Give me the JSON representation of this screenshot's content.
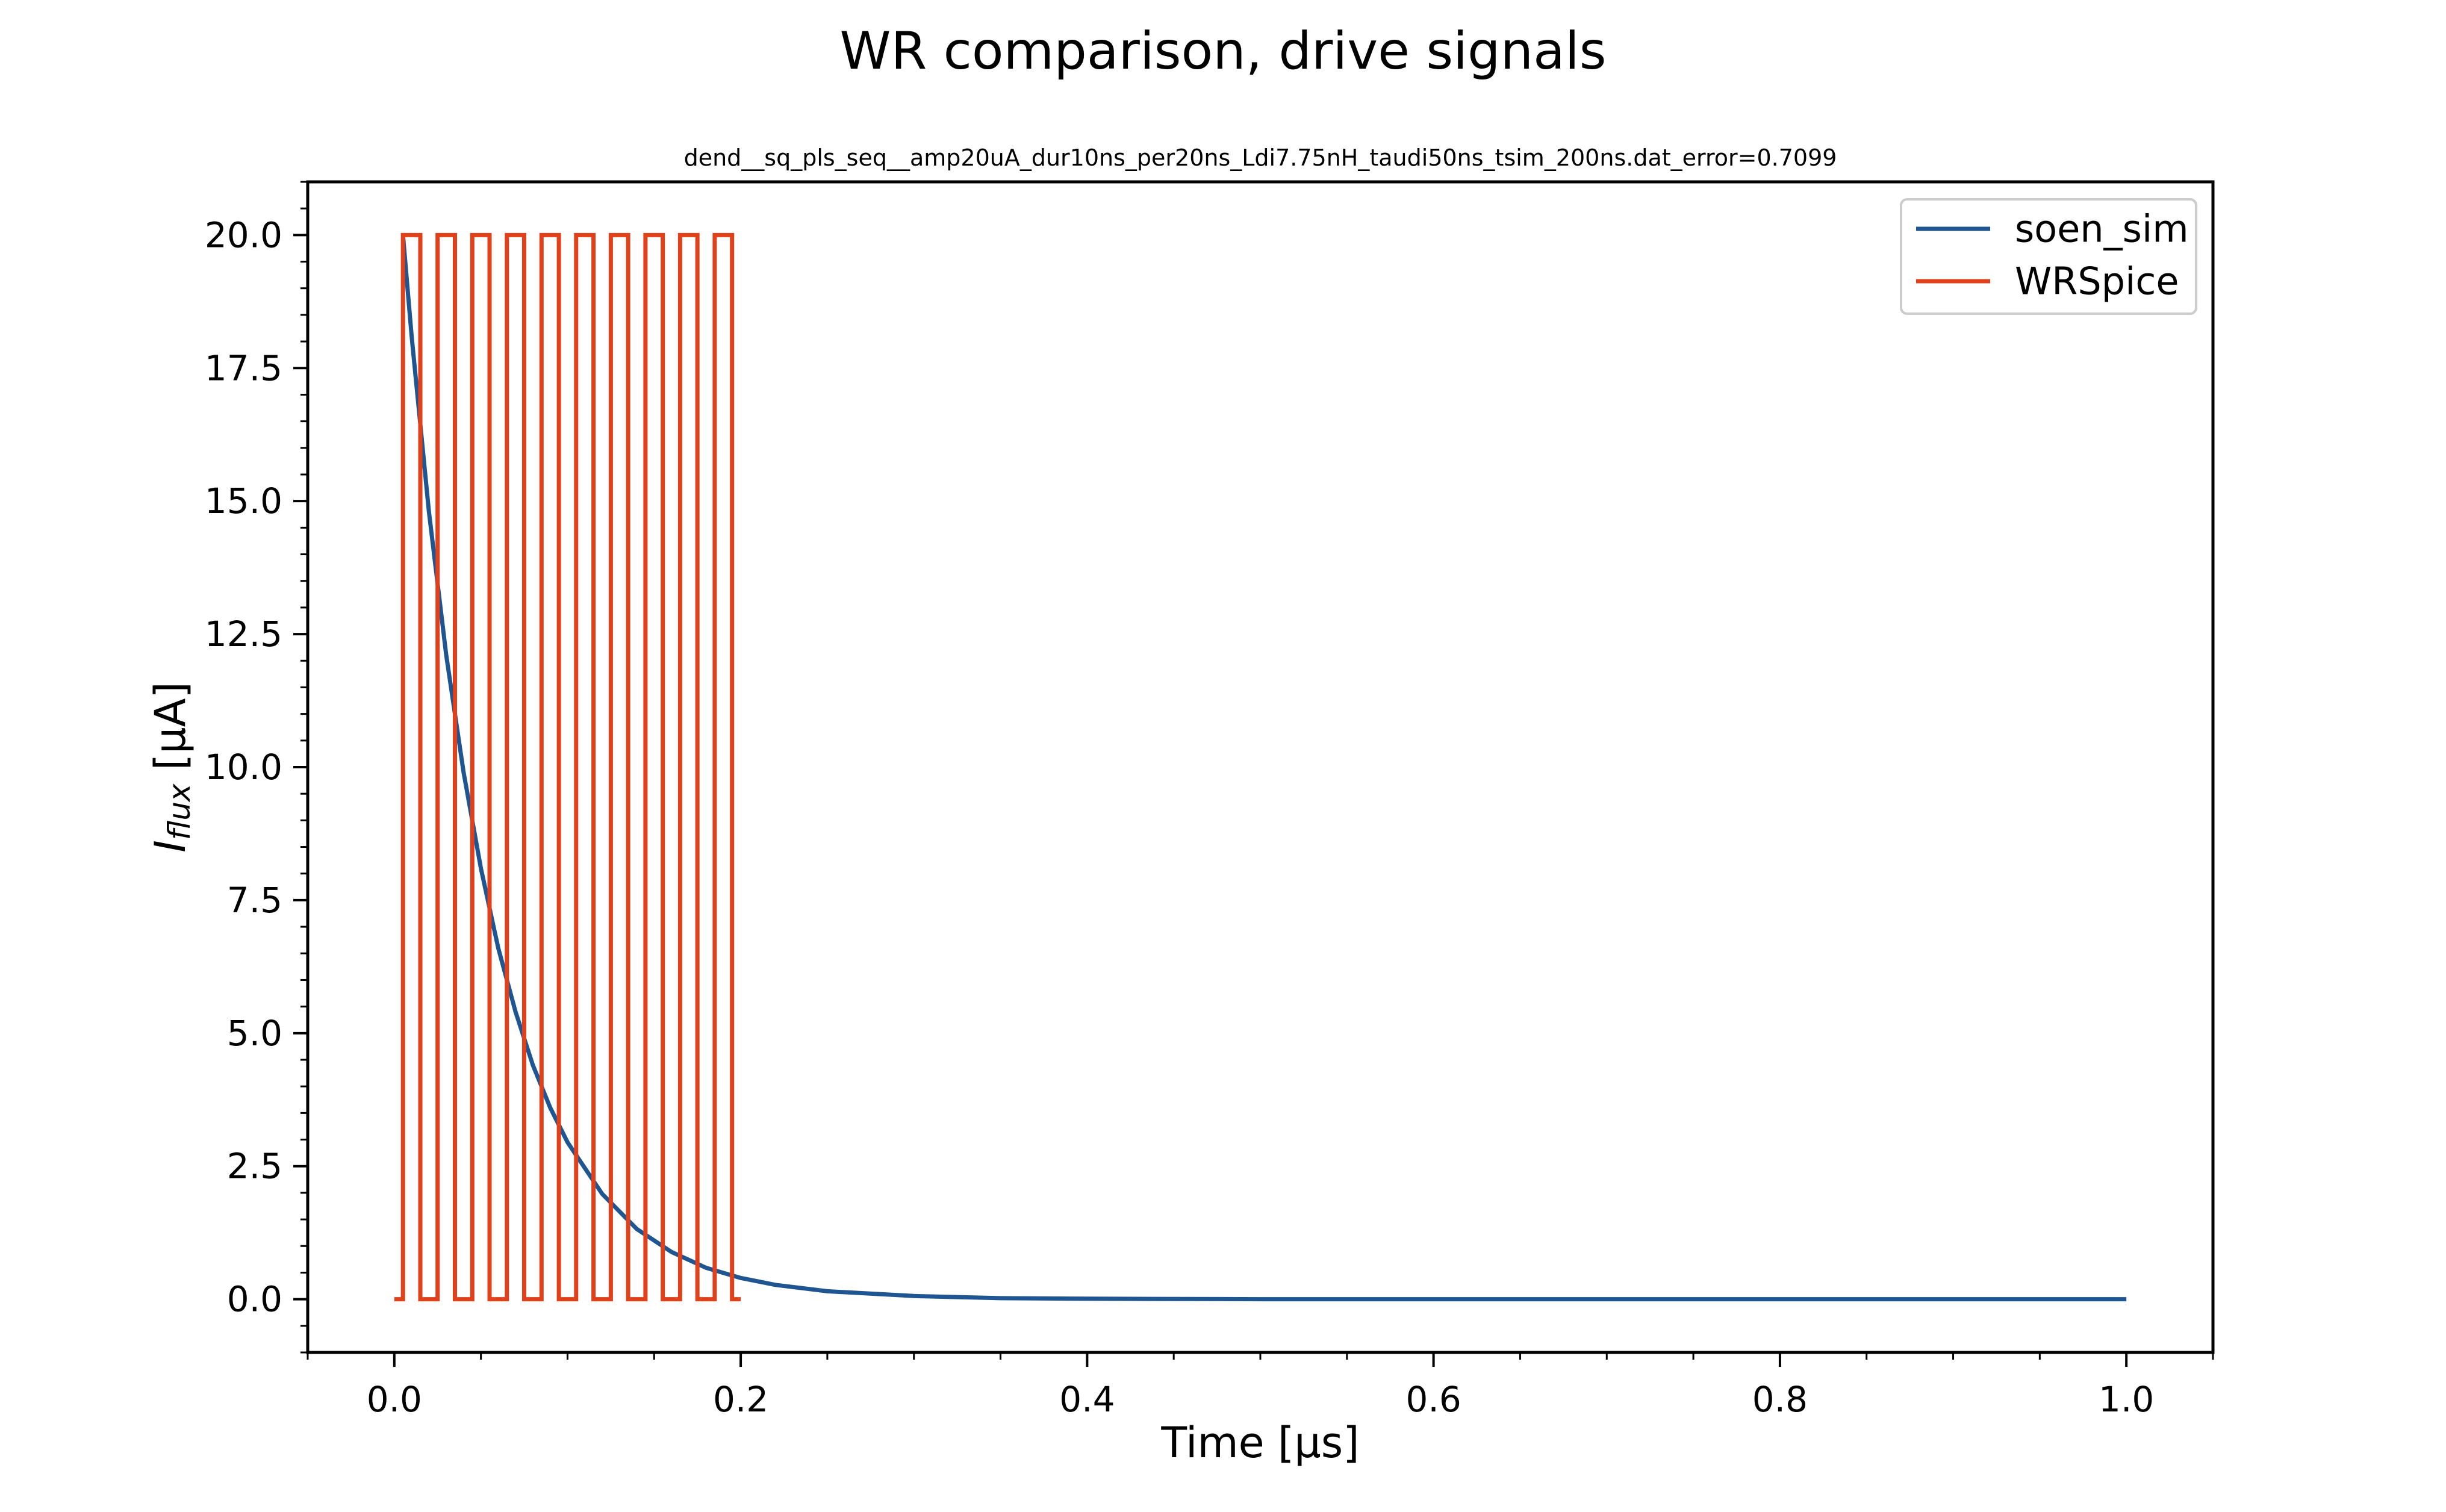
{
  "figure": {
    "suptitle": "WR comparison, drive signals"
  },
  "colors": {
    "soen_sim": "#1f5591",
    "WRSpice": "#e0401a"
  },
  "chart_data": {
    "type": "line",
    "title": "dend__sq_pls_seq__amp20uA_dur10ns_per20ns_Ldi7.75nH_taudi50ns_tsim_200ns.dat_error=0.7099",
    "xlabel": "Time [μs]",
    "ylabel": "I_flux [μA]",
    "ylabel_main": "I",
    "ylabel_sub": "flux",
    "ylabel_rest": " [μA]",
    "xlim": [
      -0.05,
      1.05
    ],
    "ylim": [
      -1.0,
      21.0
    ],
    "xticks": [
      0.0,
      0.2,
      0.4,
      0.6,
      0.8,
      1.0
    ],
    "xtick_labels": [
      "0.0",
      "0.2",
      "0.4",
      "0.6",
      "0.8",
      "1.0"
    ],
    "yticks": [
      0.0,
      2.5,
      5.0,
      7.5,
      10.0,
      12.5,
      15.0,
      17.5,
      20.0
    ],
    "ytick_labels": [
      "0.0",
      "2.5",
      "5.0",
      "7.5",
      "10.0",
      "12.5",
      "15.0",
      "17.5",
      "20.0"
    ],
    "legend": {
      "position": "top-right",
      "entries": [
        "soen_sim",
        "WRSpice"
      ]
    },
    "grid": false,
    "series": [
      {
        "name": "soen_sim",
        "x": [
          0.005,
          0.01,
          0.02,
          0.03,
          0.04,
          0.05,
          0.06,
          0.07,
          0.08,
          0.09,
          0.1,
          0.12,
          0.14,
          0.16,
          0.18,
          0.2,
          0.22,
          0.25,
          0.3,
          0.35,
          0.4,
          0.5,
          0.6,
          0.7,
          0.8,
          0.9,
          1.0
        ],
        "y": [
          20.0,
          18.1,
          14.8,
          12.1,
          9.9,
          8.1,
          6.6,
          5.4,
          4.4,
          3.6,
          2.95,
          1.98,
          1.32,
          0.89,
          0.59,
          0.4,
          0.27,
          0.15,
          0.06,
          0.02,
          0.01,
          0.0,
          0.0,
          0.0,
          0.0,
          0.0,
          0.0
        ]
      },
      {
        "name": "WRSpice",
        "x": [
          0.0,
          0.005,
          0.005,
          0.015,
          0.015,
          0.025,
          0.025,
          0.035,
          0.035,
          0.045,
          0.045,
          0.055,
          0.055,
          0.065,
          0.065,
          0.075,
          0.075,
          0.085,
          0.085,
          0.095,
          0.095,
          0.105,
          0.105,
          0.115,
          0.115,
          0.125,
          0.125,
          0.135,
          0.135,
          0.145,
          0.145,
          0.155,
          0.155,
          0.165,
          0.165,
          0.175,
          0.175,
          0.185,
          0.185,
          0.195,
          0.195,
          0.2
        ],
        "y": [
          0,
          0,
          20,
          20,
          0,
          0,
          20,
          20,
          0,
          0,
          20,
          20,
          0,
          0,
          20,
          20,
          0,
          0,
          20,
          20,
          0,
          0,
          20,
          20,
          0,
          0,
          20,
          20,
          0,
          0,
          20,
          20,
          0,
          0,
          20,
          20,
          0,
          0,
          20,
          20,
          0,
          0
        ]
      }
    ]
  }
}
